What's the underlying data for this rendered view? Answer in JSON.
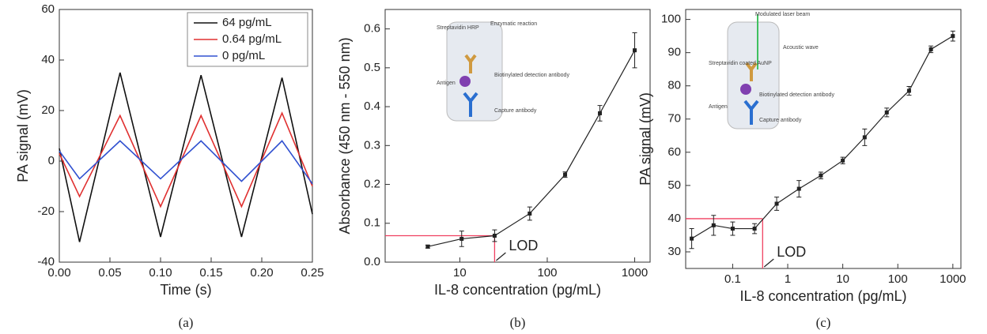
{
  "chart_data": [
    {
      "type": "line",
      "panel_label": "(a)",
      "x_label": "Time (s)",
      "y_label": "PA signal (mV)",
      "x": [
        0,
        0.02,
        0.06,
        0.1,
        0.14,
        0.18,
        0.22,
        0.25
      ],
      "series": [
        {
          "name": "64 pg/mL",
          "color": "#111111",
          "values": [
            5,
            -32,
            35,
            -30,
            34,
            -30,
            33,
            -21
          ]
        },
        {
          "name": "0.64 pg/mL",
          "color": "#e03030",
          "values": [
            3,
            -14,
            18,
            -18,
            18,
            -18,
            19,
            -10
          ]
        },
        {
          "name": "0 pg/mL",
          "color": "#3050d0",
          "values": [
            4,
            -7,
            8,
            -7,
            8,
            -8,
            8,
            -9
          ]
        }
      ],
      "xlim": [
        0,
        0.25
      ],
      "xticks": [
        {
          "value": 0,
          "label": "0.00"
        },
        0.05,
        {
          "value": 0.1,
          "label": "0.10"
        },
        0.15,
        {
          "value": 0.2,
          "label": "0.20"
        },
        0.25
      ],
      "ylim": [
        -40,
        60
      ],
      "yticks": [
        -40,
        -20,
        0,
        20,
        40,
        60
      ],
      "legend": "upper right"
    },
    {
      "type": "line",
      "panel_label": "(b)",
      "x_label": "IL-8 concentration (pg/mL)",
      "y_label": "Absorbance  (450 nm - 550 nm)",
      "x": [
        4.3,
        10.5,
        25,
        63,
        160,
        400,
        1000
      ],
      "values": [
        0.04,
        0.06,
        0.068,
        0.125,
        0.225,
        0.383,
        0.545
      ],
      "errors": [
        0.004,
        0.02,
        0.015,
        0.017,
        0.007,
        0.02,
        0.045
      ],
      "color": "#222222",
      "xscale": "log",
      "xlim": [
        1.4,
        1500
      ],
      "xticks": [
        10,
        100,
        1000
      ],
      "ylim": [
        0,
        0.65
      ],
      "yticks": [
        {
          "value": 0,
          "label": "0.0"
        },
        0.1,
        0.2,
        0.3,
        0.4,
        0.5,
        0.6
      ],
      "lod": {
        "label": "LOD",
        "x": 25,
        "y": 0.068,
        "color": "#f04060"
      },
      "inset_labels": [
        "Enzymatic reaction",
        "Streptavidin HRP",
        "Biotinylated detection antibody",
        "Antigen",
        "Capture antibody"
      ]
    },
    {
      "type": "line",
      "panel_label": "(c)",
      "x_label": "IL-8 concentration (pg/mL)",
      "y_label": "PA signal (mV)",
      "x": [
        0.018,
        0.045,
        0.1,
        0.25,
        0.63,
        1.6,
        4,
        10,
        25,
        63,
        160,
        400,
        1000
      ],
      "values": [
        34,
        38,
        37,
        37,
        44.5,
        49,
        53,
        57.5,
        64.5,
        72,
        78.5,
        91,
        95
      ],
      "errors": [
        3,
        3,
        2,
        1.5,
        2,
        2.5,
        1,
        1,
        2.5,
        1.3,
        1.3,
        1,
        1.5
      ],
      "color": "#222222",
      "xscale": "log",
      "xlim": [
        0.014,
        1400
      ],
      "xticks": [
        0.1,
        1,
        10,
        100,
        1000
      ],
      "ylim": [
        25,
        103
      ],
      "yticks": [
        30,
        40,
        50,
        60,
        70,
        80,
        90,
        100
      ],
      "lod": {
        "label": "LOD",
        "x": 0.35,
        "y": 40,
        "color": "#f04060"
      },
      "inset_labels": [
        "Modulated laser beam",
        "Acoustic wave",
        "Streptavidin coated AuNP",
        "Biotinylated detection antibody",
        "Antigen",
        "Capture antibody"
      ]
    }
  ]
}
